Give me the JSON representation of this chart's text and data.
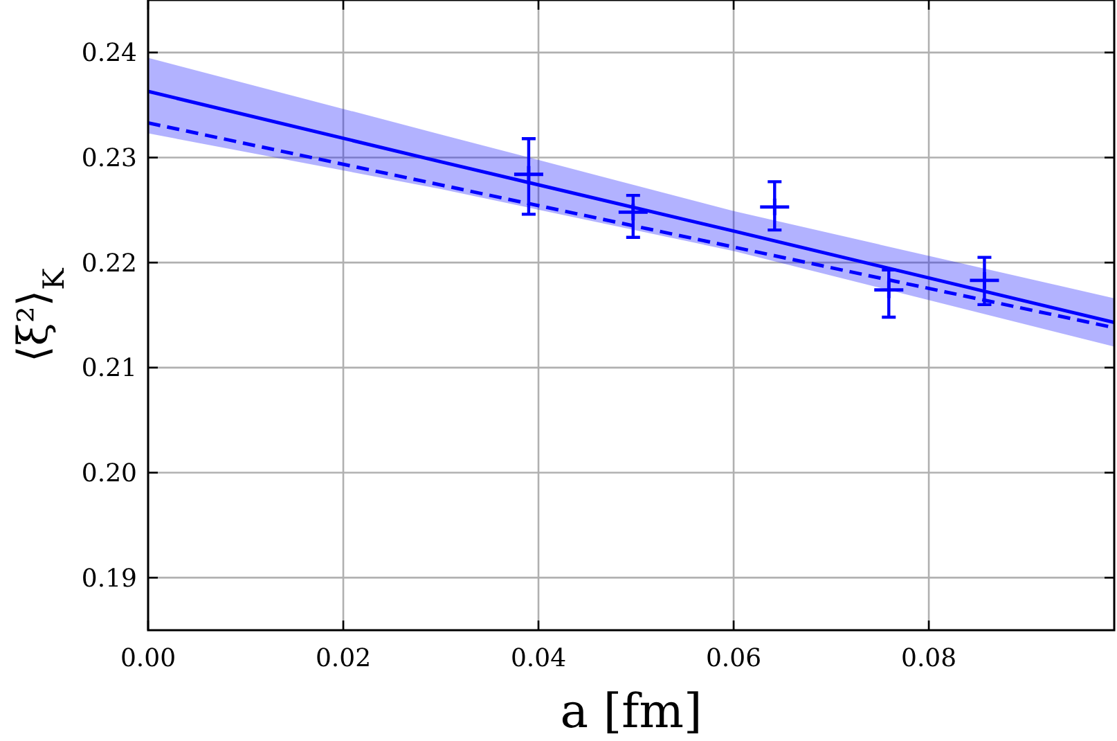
{
  "chart_data": {
    "type": "line",
    "xlabel": "a [fm]",
    "ylabel": "⟨ξ²⟩$_{K}$",
    "xlim": [
      0,
      0.099
    ],
    "ylim": [
      0.185,
      0.245
    ],
    "xticks": [
      {
        "value": 0,
        "label": "0.00"
      },
      {
        "value": 0.02,
        "label": "0.02"
      },
      {
        "value": 0.04,
        "label": "0.04"
      },
      {
        "value": 0.06,
        "label": "0.06"
      },
      {
        "value": 0.08,
        "label": "0.08"
      }
    ],
    "yticks": [
      {
        "value": 0.19,
        "label": "0.19"
      },
      {
        "value": 0.2,
        "label": "0.20"
      },
      {
        "value": 0.21,
        "label": "0.21"
      },
      {
        "value": 0.22,
        "label": "0.22"
      },
      {
        "value": 0.23,
        "label": "0.23"
      },
      {
        "value": 0.24,
        "label": "0.24"
      }
    ],
    "grid": true,
    "series": [
      {
        "color": "#0000ff",
        "line_style": "solid",
        "x": [
          0,
          0.03,
          0.06,
          0.099
        ],
        "values": [
          0.2363,
          0.2296,
          0.223,
          0.2143
        ],
        "lower": [
          0.2323,
          0.227,
          0.2211,
          0.212
        ],
        "upper": [
          0.2395,
          0.2322,
          0.2249,
          0.2166
        ]
      },
      {
        "color": "#0000ff",
        "line_style": "dashed",
        "x": [
          0,
          0.099
        ],
        "values": [
          0.2333,
          0.2138
        ]
      },
      {
        "type": "scatter",
        "color": "#0000ff",
        "marker": "cross",
        "x": [
          0.039,
          0.0497,
          0.0642,
          0.0759,
          0.0857
        ],
        "values": [
          0.2284,
          0.2248,
          0.2253,
          0.2174,
          0.2183
        ],
        "errors": [
          [
            0.2246,
            0.2318
          ],
          [
            0.2224,
            0.2264
          ],
          [
            0.2231,
            0.2277
          ],
          [
            0.2148,
            0.2193
          ],
          [
            0.216,
            0.2205
          ]
        ]
      }
    ]
  }
}
